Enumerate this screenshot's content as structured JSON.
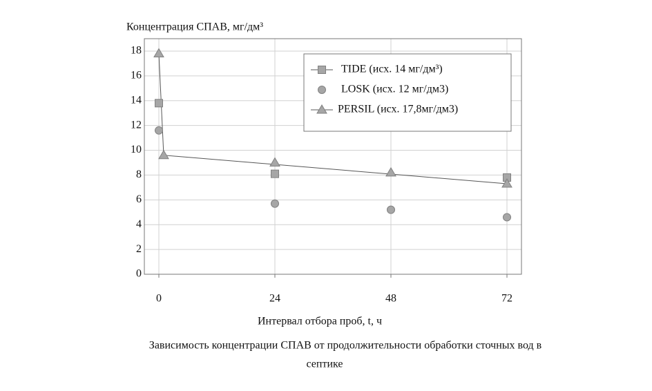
{
  "chart_data": {
    "type": "scatter",
    "y_label": "Концентрация СПАВ, мг/дм³",
    "x_label": "Интервал отбора проб, t, ч",
    "caption": [
      "Зависимость концентрации СПАВ от продолжительности обработки сточных вод в",
      "септике"
    ],
    "xlim": [
      -3,
      75
    ],
    "xticks": [
      0,
      24,
      48,
      72
    ],
    "ylim": [
      0,
      19
    ],
    "yticks": [
      0,
      2,
      4,
      6,
      8,
      10,
      12,
      14,
      16,
      18
    ],
    "grid": true,
    "series": [
      {
        "name": "TIDE (исх. 14 мг/дм³)",
        "marker": "square",
        "color": "#a6a6a6",
        "x": [
          0,
          24,
          72
        ],
        "values": [
          13.8,
          8.1,
          7.8
        ]
      },
      {
        "name": "LOSK (исх. 12 мг/дм3)",
        "marker": "circle",
        "color": "#a6a6a6",
        "x": [
          0,
          24,
          48,
          72
        ],
        "values": [
          11.6,
          5.7,
          5.2,
          4.6
        ]
      },
      {
        "name": "PERSIL (исх. 17,8мг/дм3)",
        "marker": "triangle",
        "color": "#a6a6a6",
        "x": [
          0,
          1,
          24,
          48,
          72
        ],
        "values": [
          17.8,
          9.6,
          9.0,
          8.2,
          7.3
        ]
      }
    ]
  }
}
